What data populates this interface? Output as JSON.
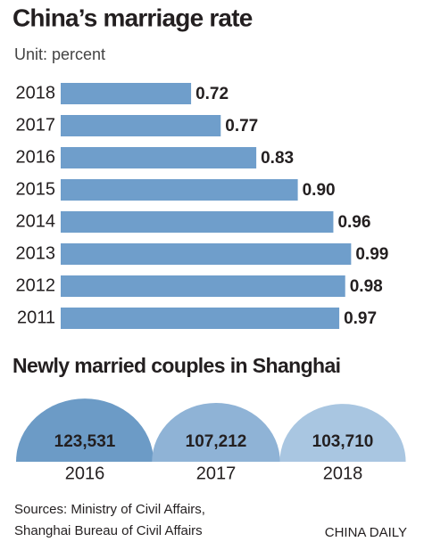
{
  "chart_data": [
    {
      "type": "bar",
      "title": "China’s marriage rate",
      "subtitle": "Unit: percent",
      "categories": [
        "2018",
        "2017",
        "2016",
        "2015",
        "2014",
        "2013",
        "2012",
        "2011"
      ],
      "values": [
        0.72,
        0.77,
        0.83,
        0.9,
        0.96,
        0.99,
        0.98,
        0.97
      ],
      "value_labels": [
        "0.72",
        "0.77",
        "0.83",
        "0.90",
        "0.96",
        "0.99",
        "0.98",
        "0.97"
      ],
      "color": "#6f9ecb",
      "xlim": [
        0.5,
        1.0
      ]
    },
    {
      "type": "dome",
      "title": "Newly married couples in Shanghai",
      "categories": [
        "2016",
        "2017",
        "2018"
      ],
      "values": [
        123531,
        107212,
        103710
      ],
      "value_labels": [
        "123,531",
        "107,212",
        "103,710"
      ],
      "colors": [
        "#6c9bc6",
        "#8fb3d6",
        "#a9c6e1"
      ]
    }
  ],
  "footer": {
    "sources": [
      "Sources: Ministry of Civil Affairs,",
      "Shanghai Bureau of Civil Affairs"
    ],
    "credit": "CHINA DAILY"
  }
}
